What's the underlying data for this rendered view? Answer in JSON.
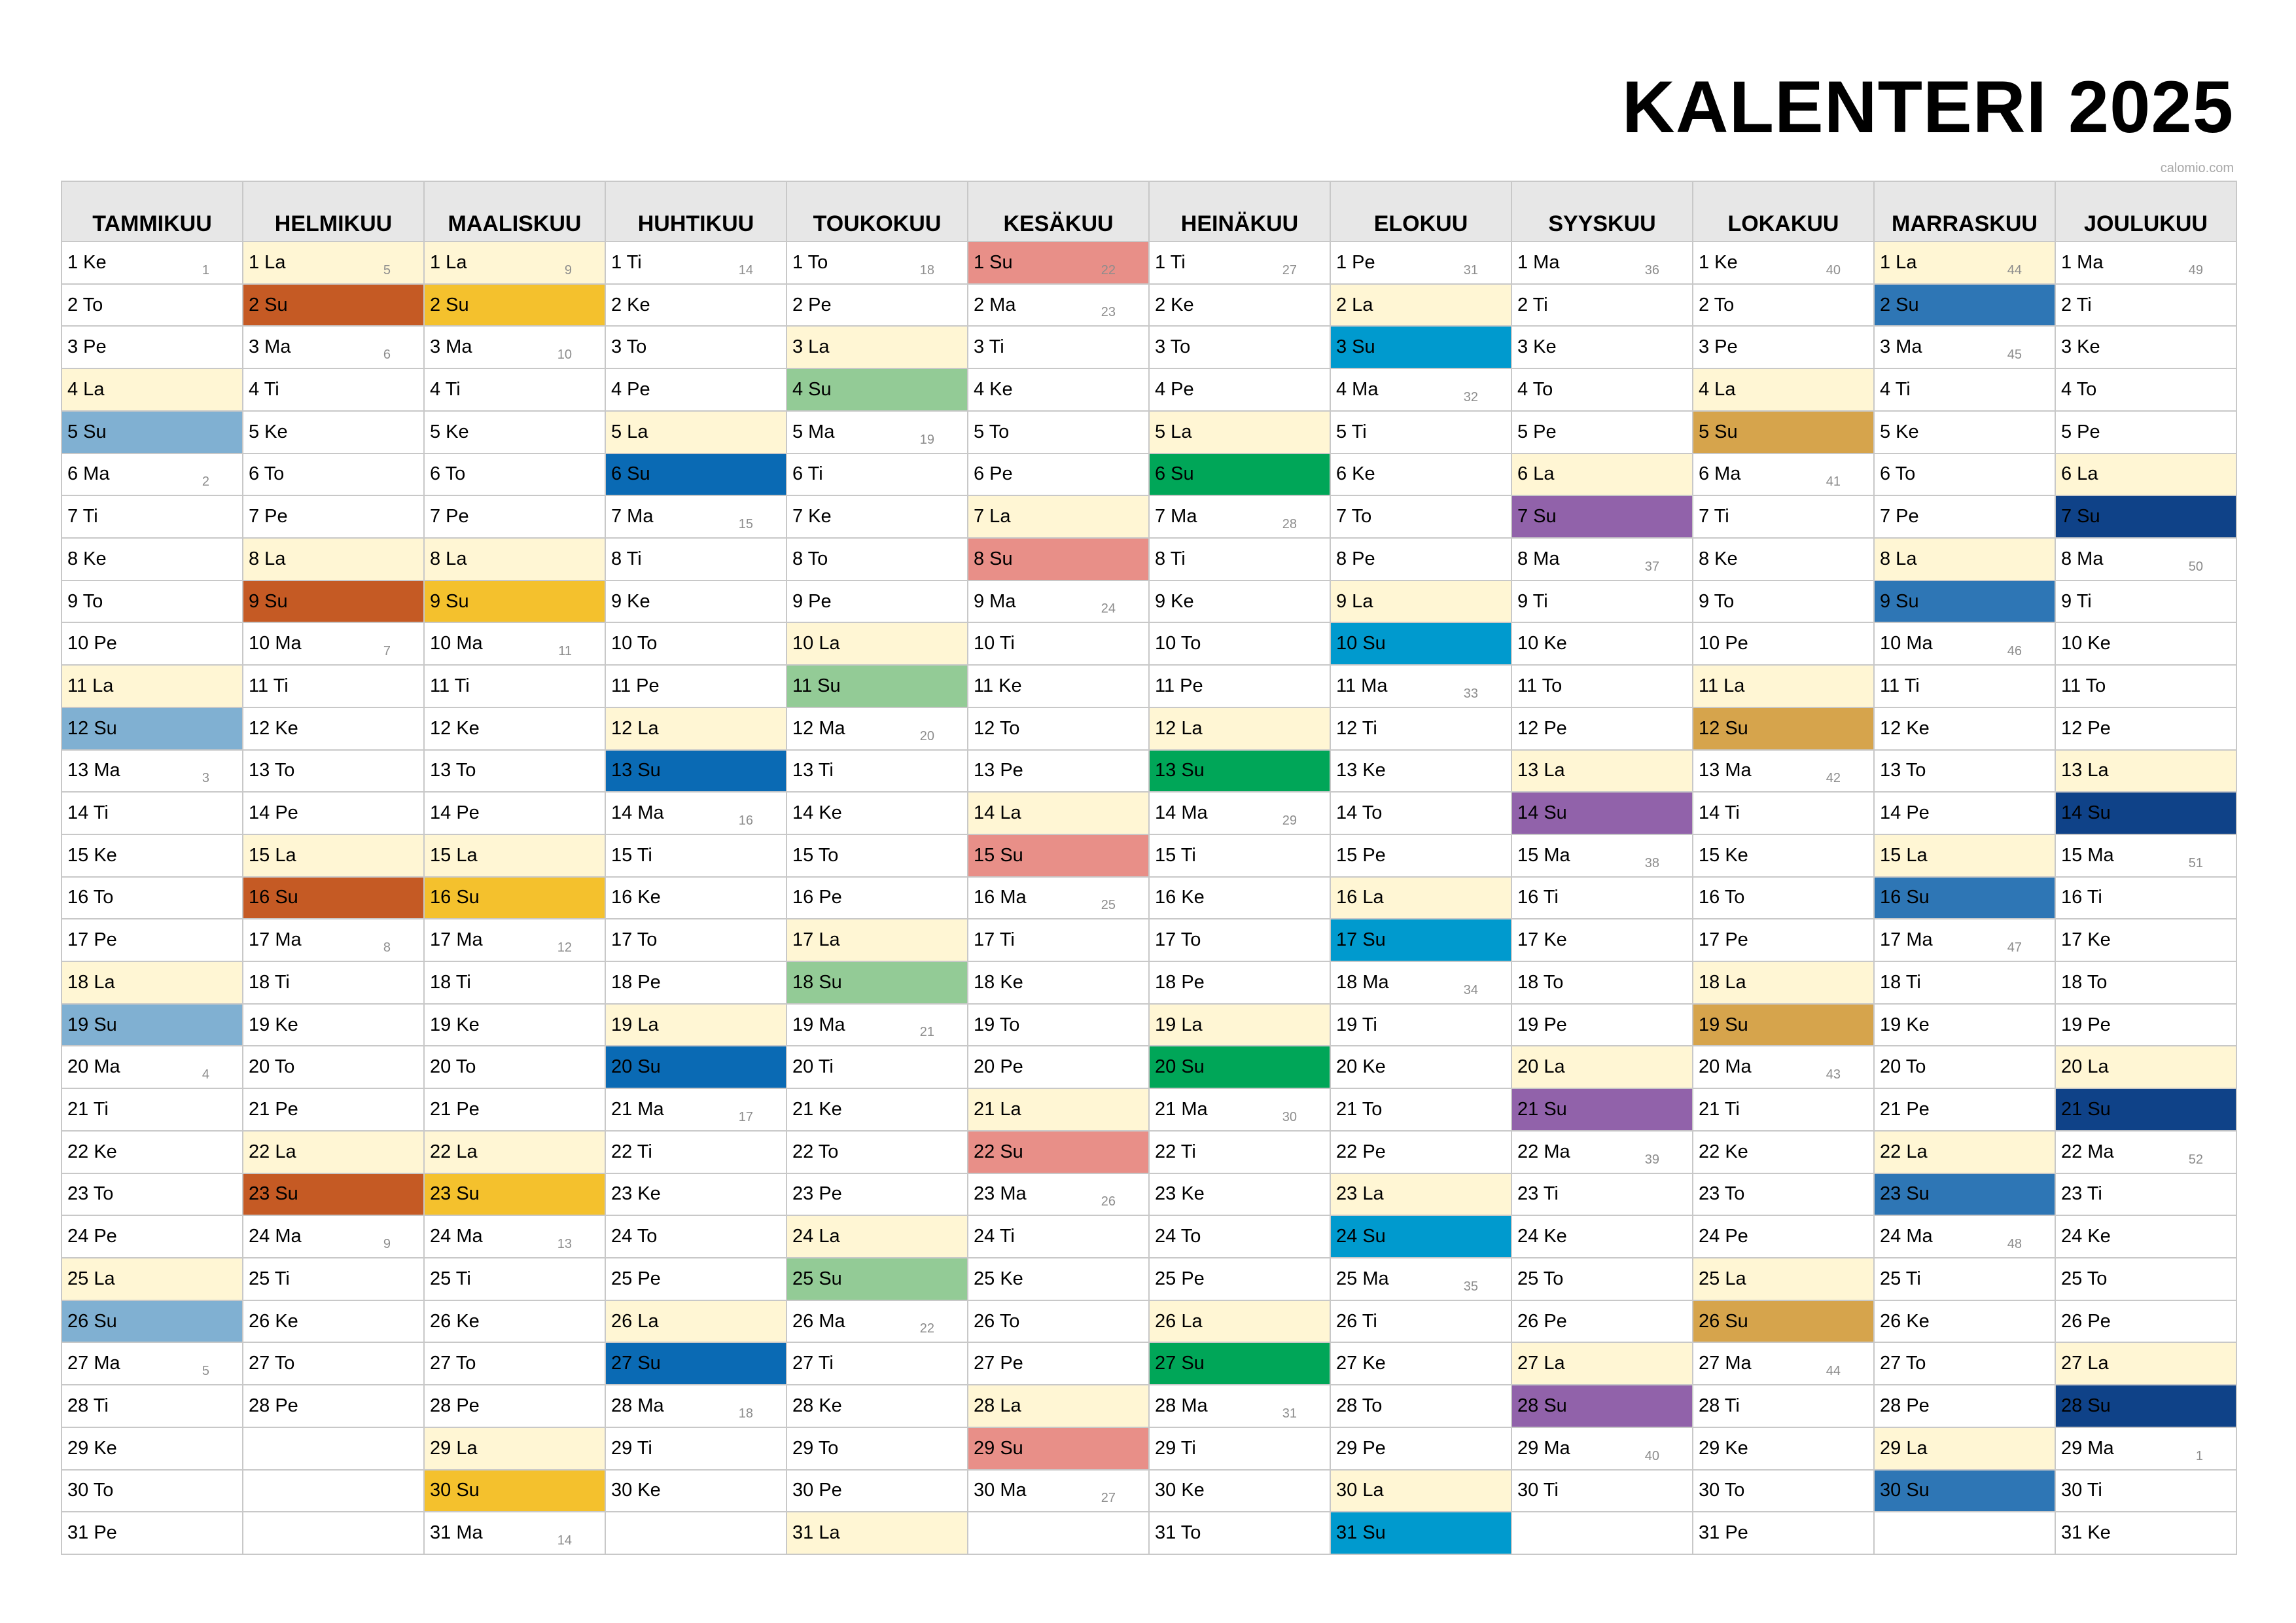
{
  "title": "KALENTERI 2025",
  "source": "calomio.com",
  "colors": {
    "saturday": "#fff6d4",
    "sunday": [
      "#80b0d2",
      "#c55a24",
      "#f4c12d",
      "#0a6ab4",
      "#93cb96",
      "#e88f88",
      "#00a658",
      "#009ace",
      "#9162aa",
      "#d6a44c",
      "#2e76b5",
      "#0f4288"
    ]
  },
  "months": [
    {
      "name": "TAMMIKUU",
      "start": 3,
      "days": 31,
      "weeks": {
        "1": "1",
        "6": "2",
        "13": "3",
        "20": "4",
        "27": "5"
      }
    },
    {
      "name": "HELMIKUU",
      "start": 6,
      "days": 28,
      "weeks": {
        "1": "5",
        "3": "6",
        "10": "7",
        "17": "8",
        "24": "9"
      }
    },
    {
      "name": "MAALISKUU",
      "start": 6,
      "days": 31,
      "weeks": {
        "1": "9",
        "3": "10",
        "10": "11",
        "17": "12",
        "24": "13",
        "31": "14"
      }
    },
    {
      "name": "HUHTIKUU",
      "start": 2,
      "days": 30,
      "weeks": {
        "1": "14",
        "7": "15",
        "14": "16",
        "21": "17",
        "28": "18"
      }
    },
    {
      "name": "TOUKOKUU",
      "start": 4,
      "days": 31,
      "weeks": {
        "1": "18",
        "5": "19",
        "12": "20",
        "19": "21",
        "26": "22"
      }
    },
    {
      "name": "KESÄKUU",
      "start": 0,
      "days": 30,
      "weeks": {
        "1": "22",
        "2": "23",
        "9": "24",
        "16": "25",
        "23": "26",
        "30": "27"
      }
    },
    {
      "name": "HEINÄKUU",
      "start": 2,
      "days": 31,
      "weeks": {
        "1": "27",
        "7": "28",
        "14": "29",
        "21": "30",
        "28": "31"
      }
    },
    {
      "name": "ELOKUU",
      "start": 5,
      "days": 31,
      "weeks": {
        "1": "31",
        "4": "32",
        "11": "33",
        "18": "34",
        "25": "35"
      }
    },
    {
      "name": "SYYSKUU",
      "start": 1,
      "days": 30,
      "weeks": {
        "1": "36",
        "8": "37",
        "15": "38",
        "22": "39",
        "29": "40"
      }
    },
    {
      "name": "LOKAKUU",
      "start": 3,
      "days": 31,
      "weeks": {
        "1": "40",
        "6": "41",
        "13": "42",
        "20": "43",
        "27": "44"
      }
    },
    {
      "name": "MARRASKUU",
      "start": 6,
      "days": 30,
      "weeks": {
        "1": "44",
        "3": "45",
        "10": "46",
        "17": "47",
        "24": "48"
      }
    },
    {
      "name": "JOULUKUU",
      "start": 1,
      "days": 31,
      "weeks": {
        "1": "49",
        "8": "50",
        "15": "51",
        "22": "52",
        "29": "1"
      }
    }
  ],
  "weekday_abbr": [
    "Su",
    "Ma",
    "Ti",
    "Ke",
    "To",
    "Pe",
    "La"
  ]
}
